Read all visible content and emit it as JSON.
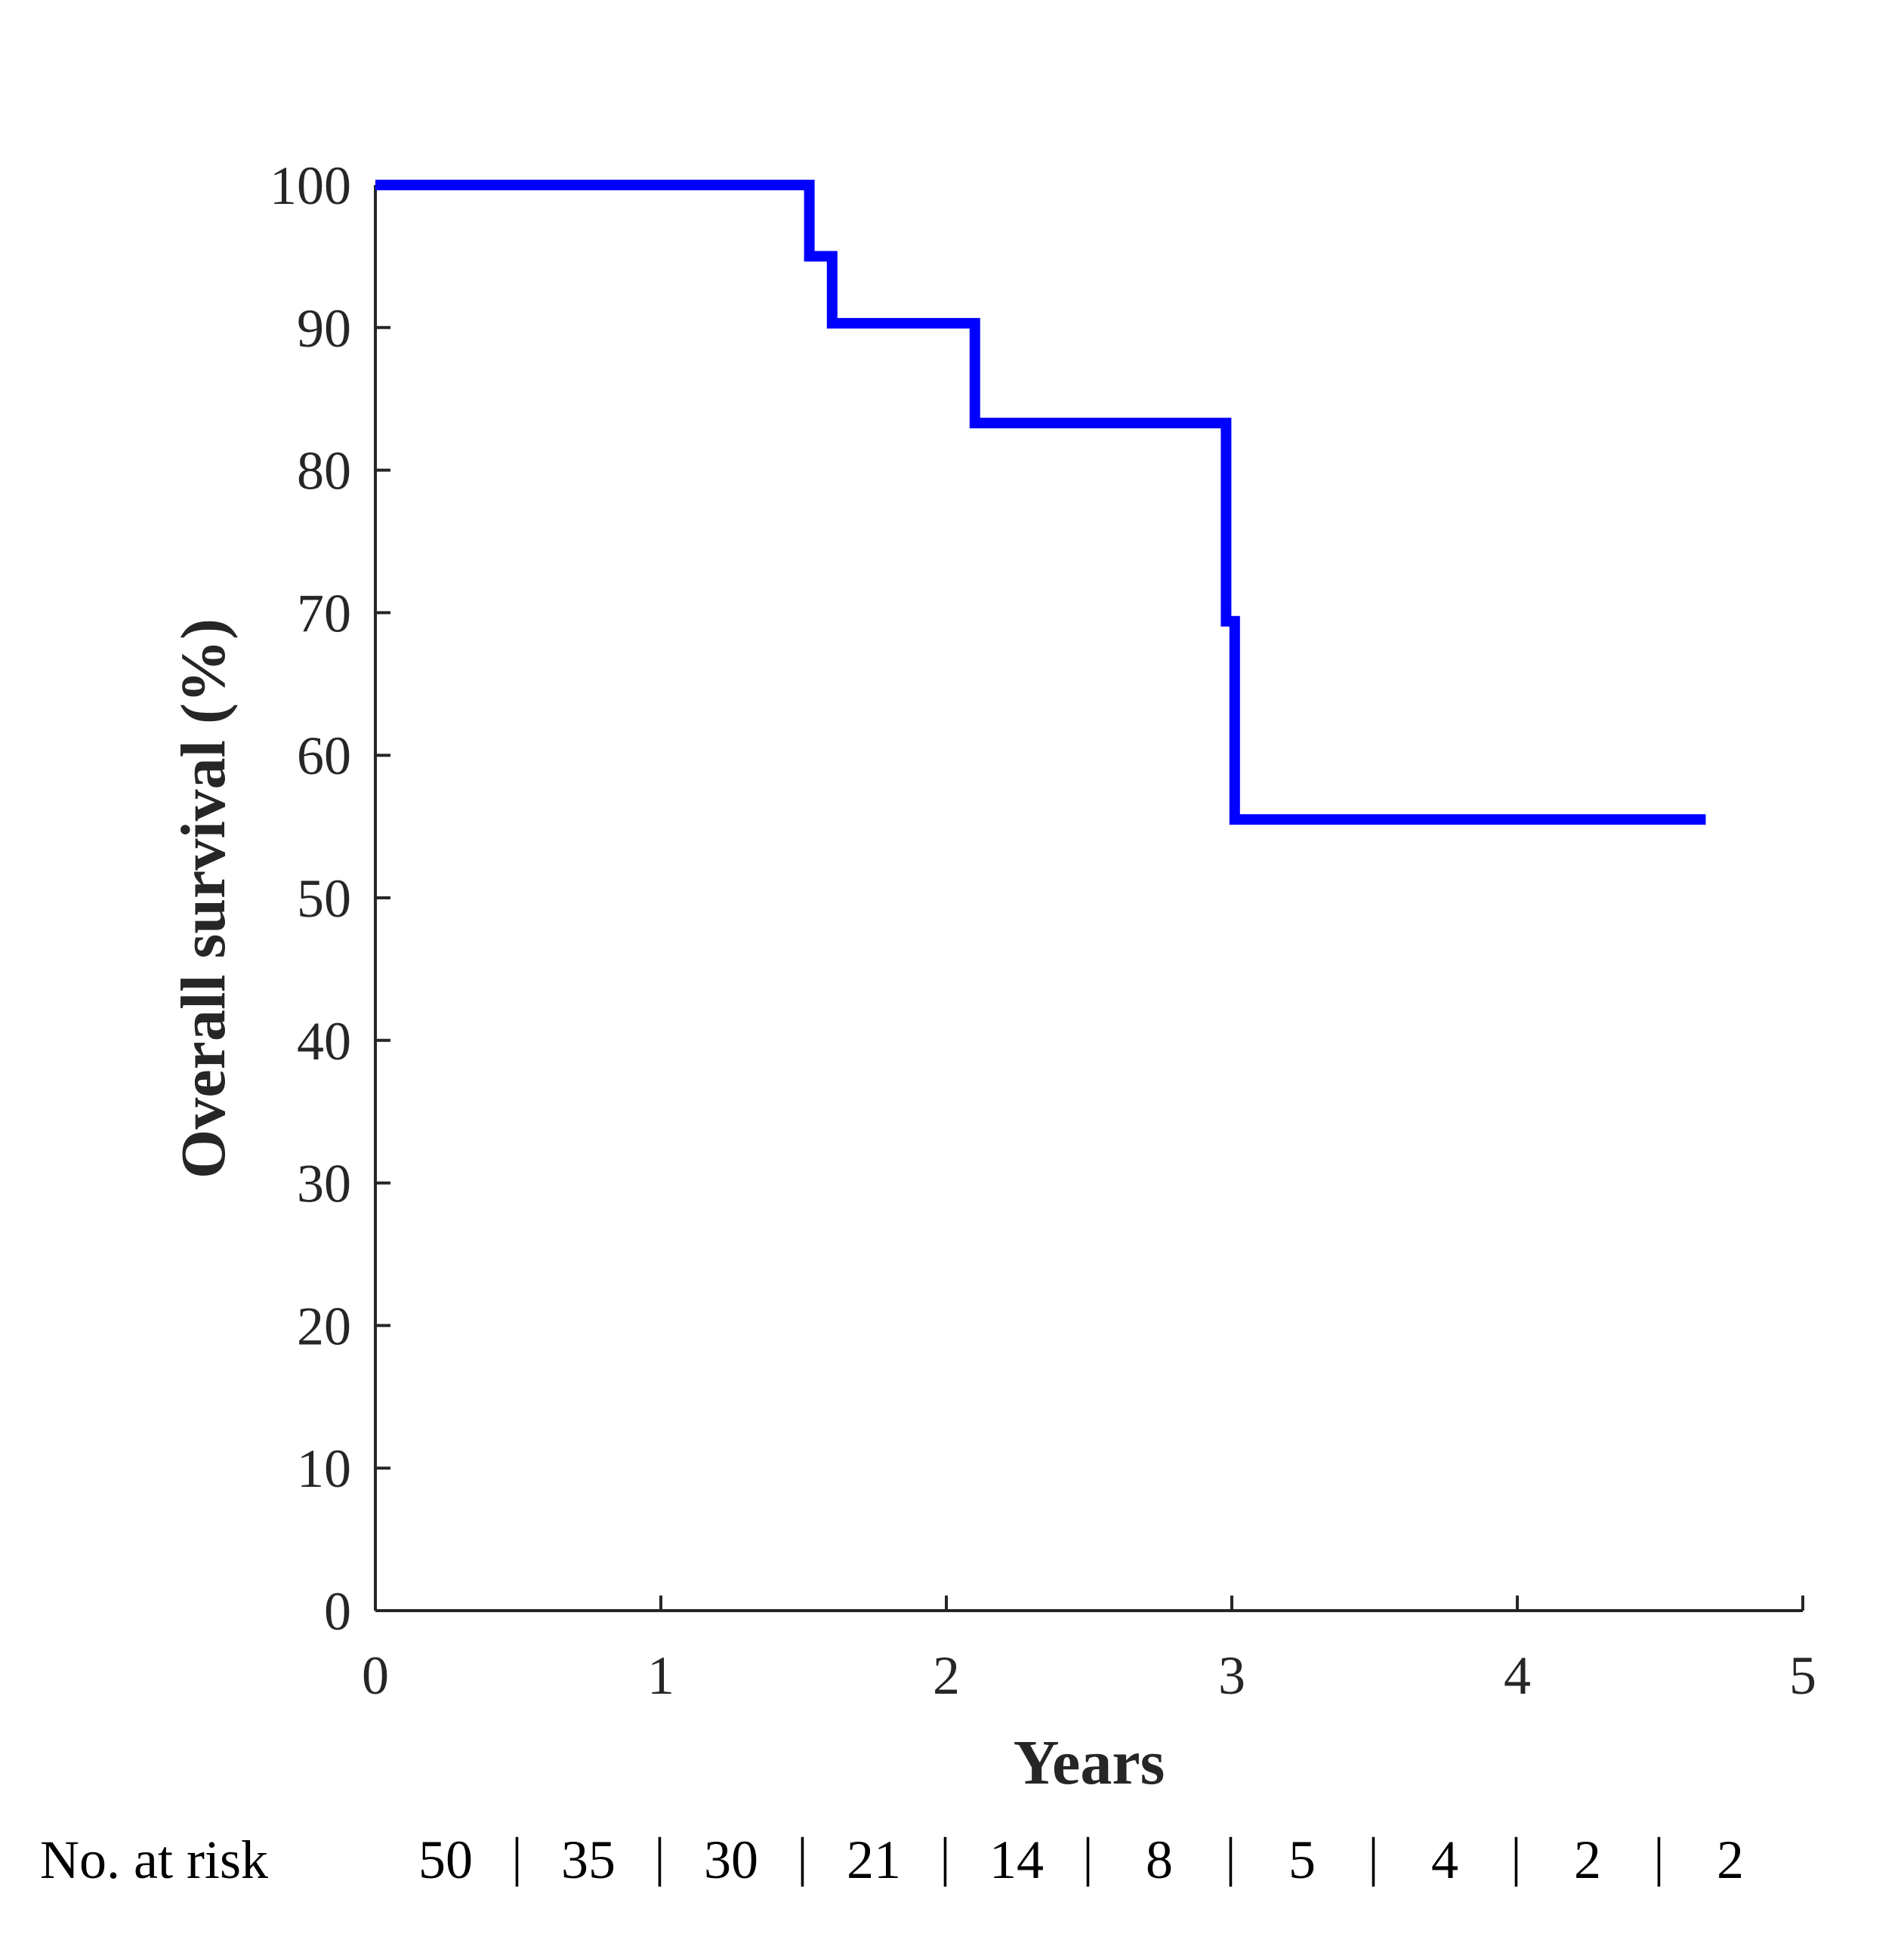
{
  "chart_data": {
    "type": "line",
    "step": true,
    "title": "",
    "xlabel": "Years",
    "ylabel": "Overall survival (%)",
    "xlim": [
      0,
      5
    ],
    "ylim": [
      0,
      100
    ],
    "x_ticks": [
      0,
      1,
      2,
      3,
      4,
      5
    ],
    "y_ticks": [
      0,
      10,
      20,
      30,
      40,
      50,
      60,
      70,
      80,
      90,
      100
    ],
    "grid": false,
    "line_color": "#0000FF",
    "series": [
      {
        "name": "",
        "points": [
          {
            "x": 0.0,
            "y": 100
          },
          {
            "x": 1.52,
            "y": 100
          },
          {
            "x": 1.52,
            "y": 95
          },
          {
            "x": 1.6,
            "y": 95
          },
          {
            "x": 1.6,
            "y": 90.3
          },
          {
            "x": 2.1,
            "y": 90.3
          },
          {
            "x": 2.1,
            "y": 83.3
          },
          {
            "x": 2.98,
            "y": 83.3
          },
          {
            "x": 2.98,
            "y": 69.4
          },
          {
            "x": 3.01,
            "y": 69.4
          },
          {
            "x": 3.01,
            "y": 55.5
          },
          {
            "x": 4.66,
            "y": 55.5
          }
        ]
      }
    ],
    "at_risk": {
      "label": "No. at risk",
      "values": [
        "50",
        "35",
        "30",
        "21",
        "14",
        "8",
        "5",
        "4",
        "2",
        "2"
      ],
      "separator": "|"
    }
  }
}
